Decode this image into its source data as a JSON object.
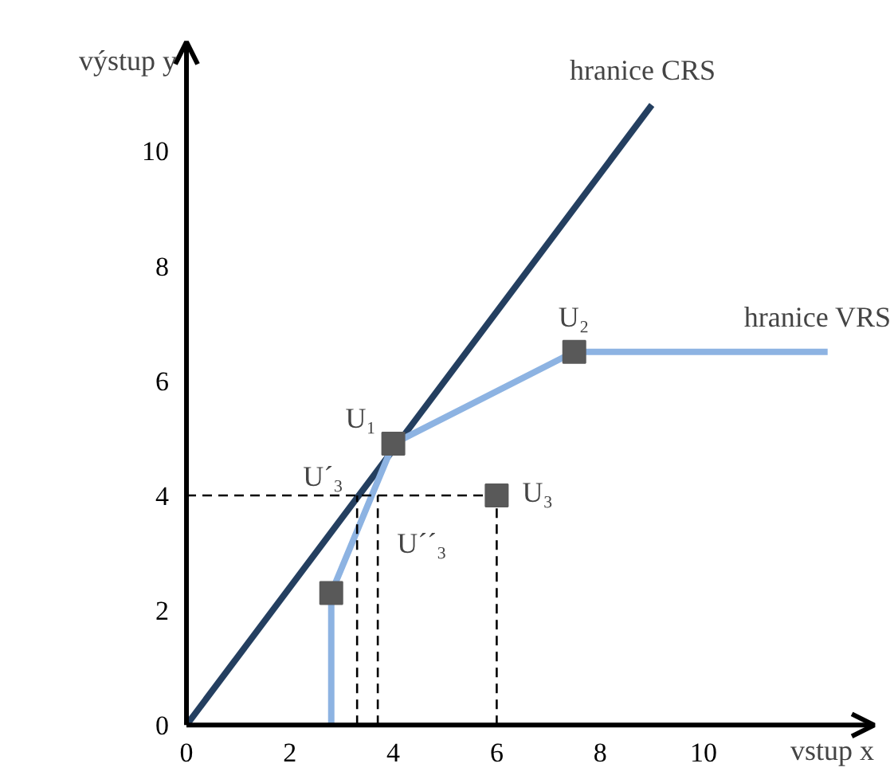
{
  "chart_data": {
    "type": "line",
    "xlabel": "vstup x",
    "ylabel": "výstup y",
    "xlim": [
      0,
      13.3
    ],
    "ylim": [
      0,
      11.9
    ],
    "xticks": [
      0,
      2,
      4,
      6,
      8,
      10
    ],
    "yticks": [
      0,
      2,
      4,
      6,
      8,
      10
    ],
    "grid": false,
    "series": [
      {
        "name": "hranice CRS",
        "color": "#243f60",
        "x": [
          0,
          9.0
        ],
        "values": [
          0,
          10.8
        ],
        "line_style": "solid"
      },
      {
        "name": "hranice VRS",
        "color": "#8db3e2",
        "x": [
          2.8,
          2.8,
          4.0,
          7.5,
          12.4
        ],
        "values": [
          0,
          2.3,
          4.9,
          6.5,
          6.5
        ],
        "line_style": "solid"
      },
      {
        "color": "#000000",
        "x": [
          0,
          6
        ],
        "values": [
          4,
          4
        ],
        "line_style": "dashed"
      },
      {
        "color": "#000000",
        "x": [
          3.3,
          3.3
        ],
        "values": [
          0,
          4
        ],
        "line_style": "dashed"
      },
      {
        "color": "#000000",
        "x": [
          3.7,
          3.7
        ],
        "values": [
          0,
          4
        ],
        "line_style": "dashed"
      },
      {
        "color": "#000000",
        "x": [
          6,
          6
        ],
        "values": [
          0,
          4
        ],
        "line_style": "dashed"
      },
      {
        "type": "scatter",
        "marker": "square",
        "color": "#595959",
        "x": [
          2.8,
          4.0,
          7.5,
          6
        ],
        "values": [
          2.3,
          4.9,
          6.5,
          4
        ]
      }
    ],
    "annotations": [
      {
        "text": "U₁",
        "x": 4.0,
        "y": 4.9
      },
      {
        "text": "U₂",
        "x": 7.5,
        "y": 6.5
      },
      {
        "text": "U₃",
        "x": 6,
        "y": 4
      },
      {
        "text": "U´₃",
        "x": 3.3,
        "y": 4
      },
      {
        "text": "U´´₃",
        "x": 3.7,
        "y": 4
      }
    ]
  }
}
